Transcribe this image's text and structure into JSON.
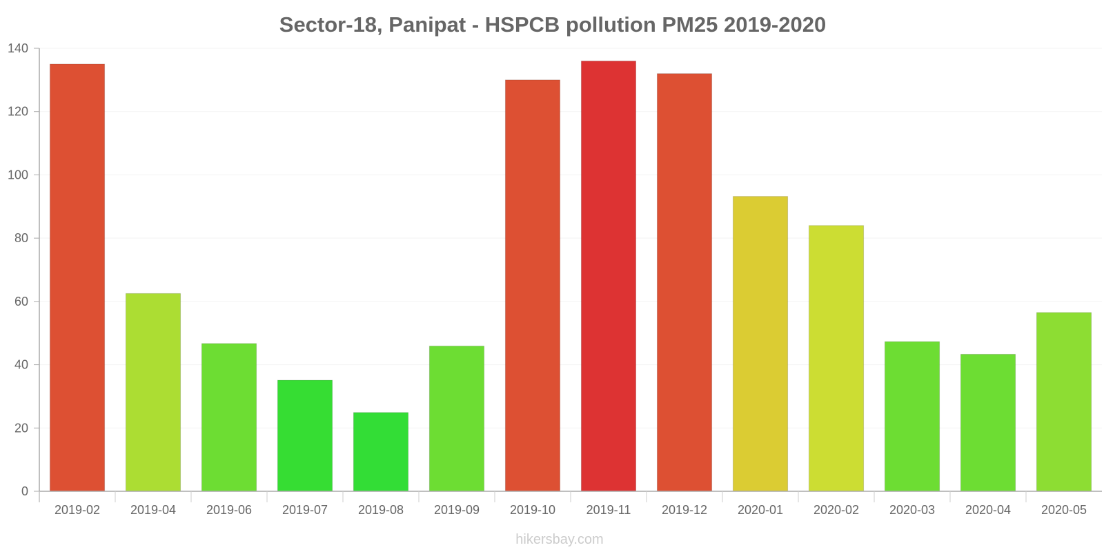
{
  "chart_data": {
    "type": "bar",
    "title": "Sector-18, Panipat - HSPCB pollution PM25 2019-2020",
    "xlabel": "",
    "ylabel": "",
    "ylim": [
      0,
      140
    ],
    "yticks": [
      0,
      20,
      40,
      60,
      80,
      100,
      120,
      140
    ],
    "grid": true,
    "legend": "none",
    "categories": [
      "2019-02",
      "2019-04",
      "2019-06",
      "2019-07",
      "2019-08",
      "2019-09",
      "2019-10",
      "2019-11",
      "2019-12",
      "2020-01",
      "2020-02",
      "2020-03",
      "2020-04",
      "2020-05"
    ],
    "values": [
      135,
      62.5,
      46.7,
      35.1,
      24.9,
      45.9,
      130,
      136,
      132,
      93.2,
      84,
      47.3,
      43.3,
      56.5
    ],
    "colors": [
      "#dd5033",
      "#acdd33",
      "#6ddd33",
      "#36dd33",
      "#33dd36",
      "#6ddd33",
      "#dd5033",
      "#dd3333",
      "#dd5033",
      "#dbcc33",
      "#ccdd33",
      "#6ddd33",
      "#6ddd33",
      "#8ddd33"
    ]
  },
  "watermark": "hikersbay.com"
}
